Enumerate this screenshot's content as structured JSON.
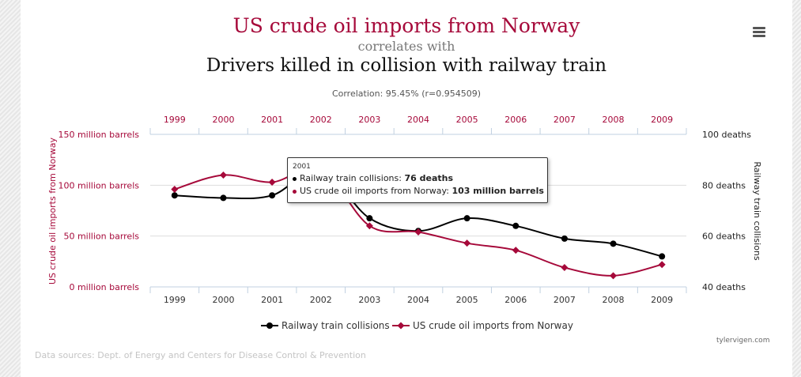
{
  "header": {
    "title_top": "US crude oil imports from Norway",
    "title_mid": "correlates with",
    "title_bottom": "Drivers killed in collision with railway train",
    "correlation": "Correlation: 95.45% (r=0.954509)"
  },
  "footer": {
    "sources": "Data sources: Dept. of Energy and Centers for Disease Control & Prevention",
    "credit": "tylervigen.com"
  },
  "colors": {
    "oil": "#a6093a",
    "rail": "#000000",
    "grid": "#dddddd"
  },
  "tooltip": {
    "year": "2001",
    "rail_label": "Railway train collisions: ",
    "rail_value": "76 deaths",
    "oil_label": "US crude oil imports from Norway: ",
    "oil_value": "103 million barrels"
  },
  "chart_data": {
    "type": "line",
    "categories": [
      "1999",
      "2000",
      "2001",
      "2002",
      "2003",
      "2004",
      "2005",
      "2006",
      "2007",
      "2008",
      "2009"
    ],
    "series": [
      {
        "name": "Railway train collisions",
        "axis": "right",
        "color": "#000000",
        "marker": "circle",
        "values": [
          76,
          75,
          76,
          86,
          67,
          62,
          67,
          64,
          59,
          57,
          52
        ]
      },
      {
        "name": "US crude oil imports from Norway",
        "axis": "left",
        "color": "#a6093a",
        "marker": "diamond",
        "values": [
          96,
          110,
          103,
          116,
          60,
          54,
          43,
          36,
          19,
          11,
          22
        ]
      }
    ],
    "y_left": {
      "label": "US crude oil imports from Norway",
      "ticks": [
        "0 million barrels",
        "50 million barrels",
        "100 million barrels",
        "150 million barrels"
      ],
      "range": [
        0,
        150
      ]
    },
    "y_right": {
      "label": "Railway train collisions",
      "ticks": [
        "40 deaths",
        "60 deaths",
        "80 deaths",
        "100 deaths"
      ],
      "range": [
        40,
        100
      ]
    },
    "grid": true,
    "legend": "bottom-center"
  }
}
